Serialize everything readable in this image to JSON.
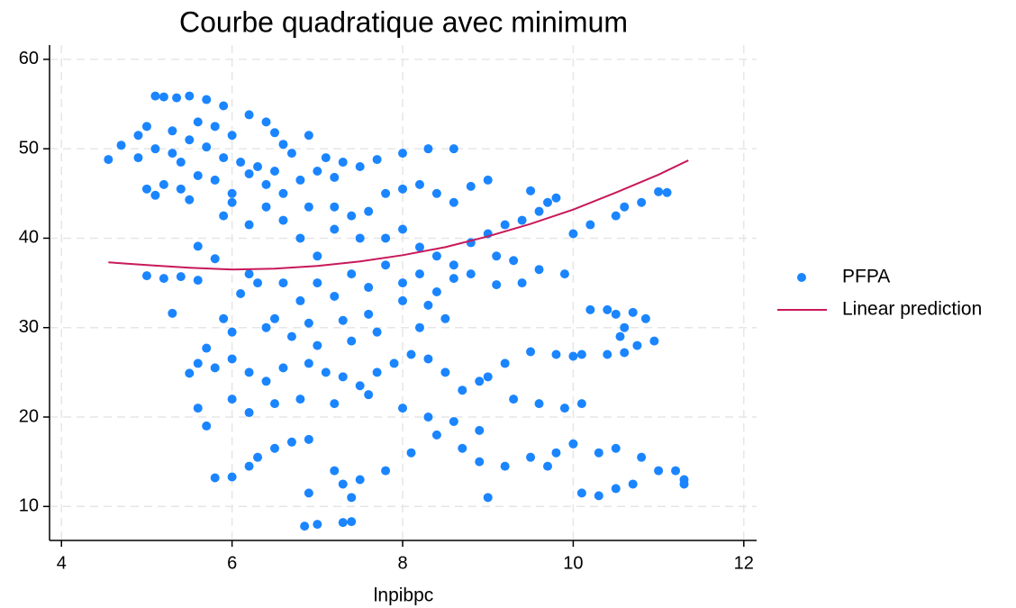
{
  "chart_data": {
    "type": "scatter",
    "title": "Courbe quadratique avec minimum",
    "xlabel": "lnpibpc",
    "xlim": [
      3.86,
      12.15
    ],
    "ylim": [
      6.2,
      61.6
    ],
    "xticks": [
      4,
      6,
      8,
      10,
      12
    ],
    "yticks": [
      10,
      20,
      30,
      40,
      50,
      60
    ],
    "grid": true,
    "legend": "right",
    "series": [
      {
        "name": "PFPA",
        "color": "#1a85ff",
        "type": "scatter",
        "x": [
          4.55,
          4.7,
          4.9,
          5.0,
          5.1,
          5.2,
          5.35,
          5.5,
          5.7,
          5.9,
          6.2,
          6.4,
          5.1,
          5.3,
          5.5,
          5.7,
          5.9,
          6.1,
          6.3,
          6.5,
          6.7,
          6.9,
          7.1,
          7.3,
          7.5,
          7.7,
          8.0,
          8.3,
          8.6,
          5.2,
          5.4,
          5.6,
          5.8,
          6.0,
          6.2,
          6.4,
          6.6,
          6.8,
          7.0,
          7.2,
          5.0,
          5.1,
          5.4,
          5.6,
          6.0,
          6.5,
          4.9,
          5.3,
          5.8,
          6.6,
          6.6,
          6.8,
          7.0,
          7.2,
          7.4,
          7.6,
          7.8,
          8.0,
          8.2,
          8.4,
          8.6,
          8.8,
          9.0,
          7.8,
          8.0,
          8.2,
          8.4,
          8.6,
          8.8,
          9.0,
          9.2,
          9.4,
          9.6,
          9.8,
          9.5,
          9.7,
          10.0,
          10.2,
          10.5,
          10.8,
          11.0,
          11.1,
          10.6,
          7.0,
          7.2,
          7.4,
          7.6,
          7.8,
          8.0,
          8.2,
          8.4,
          8.6,
          6.6,
          6.8,
          6.5,
          6.9,
          7.3,
          7.6,
          8.0,
          8.3,
          8.8,
          9.1,
          9.3,
          9.6,
          9.9,
          6.2,
          6.3,
          6.1,
          6.4,
          6.7,
          6.0,
          5.9,
          6.2,
          6.4,
          6.0,
          5.9,
          5.5,
          6.9,
          7.2,
          7.5,
          5.4,
          5.0,
          5.2,
          5.6,
          5.8,
          5.3,
          5.6,
          9.4,
          9.1,
          5.5,
          5.6,
          5.7,
          5.8,
          6.0,
          6.2,
          6.4,
          6.6,
          6.9,
          7.1,
          7.3,
          7.5,
          7.7,
          7.9,
          8.1,
          8.3,
          8.5,
          8.7,
          8.9,
          9.0,
          9.2,
          5.6,
          5.7,
          6.0,
          6.2,
          6.5,
          6.8,
          7.2,
          7.6,
          8.0,
          8.3,
          8.6,
          8.9,
          9.3,
          9.6,
          9.9,
          10.1,
          9.5,
          9.8,
          10.0,
          7.0,
          7.4,
          7.7,
          8.2,
          8.5,
          5.8,
          6.0,
          6.2,
          6.3,
          6.5,
          6.7,
          6.9,
          7.2,
          7.3,
          7.5,
          7.4,
          7.3,
          7.4,
          6.85,
          7.0,
          6.9,
          7.8,
          8.1,
          8.4,
          8.7,
          8.9,
          9.0,
          9.2,
          9.5,
          9.8,
          10.0,
          10.3,
          10.1,
          10.3,
          10.5,
          10.7,
          10.8,
          11.0,
          11.2,
          11.3,
          11.3,
          10.5,
          9.7,
          10.2,
          10.4,
          10.5,
          10.7,
          10.85,
          10.6,
          10.55,
          10.75,
          10.95,
          10.4,
          10.6,
          10.1
        ],
        "values": [
          48.8,
          50.4,
          51.5,
          52.5,
          55.9,
          55.8,
          55.7,
          55.9,
          55.5,
          54.8,
          53.8,
          53.0,
          50.0,
          49.5,
          51.0,
          50.2,
          49.0,
          48.5,
          48.0,
          47.5,
          49.5,
          51.5,
          49.0,
          48.5,
          48.0,
          48.8,
          49.5,
          50.0,
          50.0,
          46.0,
          45.5,
          47.0,
          46.5,
          45.0,
          47.2,
          46.0,
          45.0,
          46.5,
          47.5,
          46.8,
          45.5,
          44.8,
          48.5,
          53.0,
          51.5,
          51.8,
          49.0,
          52.0,
          52.5,
          50.5,
          42,
          40,
          38,
          41,
          42.5,
          43,
          45,
          45.5,
          46,
          45,
          44,
          45.8,
          46.5,
          40,
          41,
          39,
          38,
          37,
          39.5,
          40.5,
          41.5,
          42,
          43,
          44.5,
          45.3,
          44,
          40.5,
          41.5,
          42.5,
          44,
          45.2,
          45.1,
          43.5,
          35,
          33.5,
          36,
          34.5,
          37,
          35,
          36,
          34,
          35.5,
          35,
          33,
          31,
          30.5,
          30.8,
          31.5,
          33,
          32.5,
          36,
          38,
          37.5,
          36.5,
          36,
          36,
          35,
          33.8,
          30,
          29,
          29.5,
          31,
          41.5,
          43.5,
          44,
          42.5,
          44.3,
          43.5,
          43.5,
          40,
          35.7,
          35.8,
          35.5,
          35.3,
          37.7,
          31.6,
          39.1,
          35,
          34.8,
          24.9,
          26,
          27.7,
          25.5,
          26.5,
          25,
          24,
          25.5,
          26,
          25,
          24.5,
          23.5,
          25,
          26,
          27,
          26.5,
          25,
          23,
          24,
          24.5,
          26,
          21,
          19,
          22,
          20.5,
          21.5,
          22,
          21.5,
          22.5,
          21,
          20,
          19.5,
          18.5,
          22,
          21.5,
          21,
          21.5,
          27.3,
          27,
          26.8,
          28,
          28.5,
          29.5,
          30,
          31,
          13.2,
          13.3,
          14.5,
          15.5,
          16.5,
          17.2,
          17.5,
          14,
          12.5,
          13,
          11,
          8.2,
          8.3,
          7.8,
          8.0,
          11.5,
          14,
          16,
          18,
          16.5,
          15,
          11,
          14.5,
          15.5,
          16,
          17,
          16,
          11.5,
          11.2,
          12,
          12.5,
          15.5,
          14,
          14,
          13,
          12.5,
          16.5,
          14.5,
          32,
          32,
          31.5,
          31.7,
          31,
          30,
          29,
          28,
          28.5,
          27,
          27.2,
          27
        ]
      },
      {
        "name": "Linear prediction",
        "color": "#c8195a",
        "type": "line",
        "x": [
          4.55,
          5,
          5.5,
          6,
          6.5,
          7,
          7.5,
          8,
          8.5,
          9,
          9.5,
          10,
          10.5,
          11,
          11.35
        ],
        "values": [
          37.3,
          37.0,
          36.7,
          36.5,
          36.6,
          36.9,
          37.4,
          38.1,
          39.0,
          40.2,
          41.6,
          43.2,
          45.1,
          47.1,
          48.7
        ]
      }
    ]
  }
}
